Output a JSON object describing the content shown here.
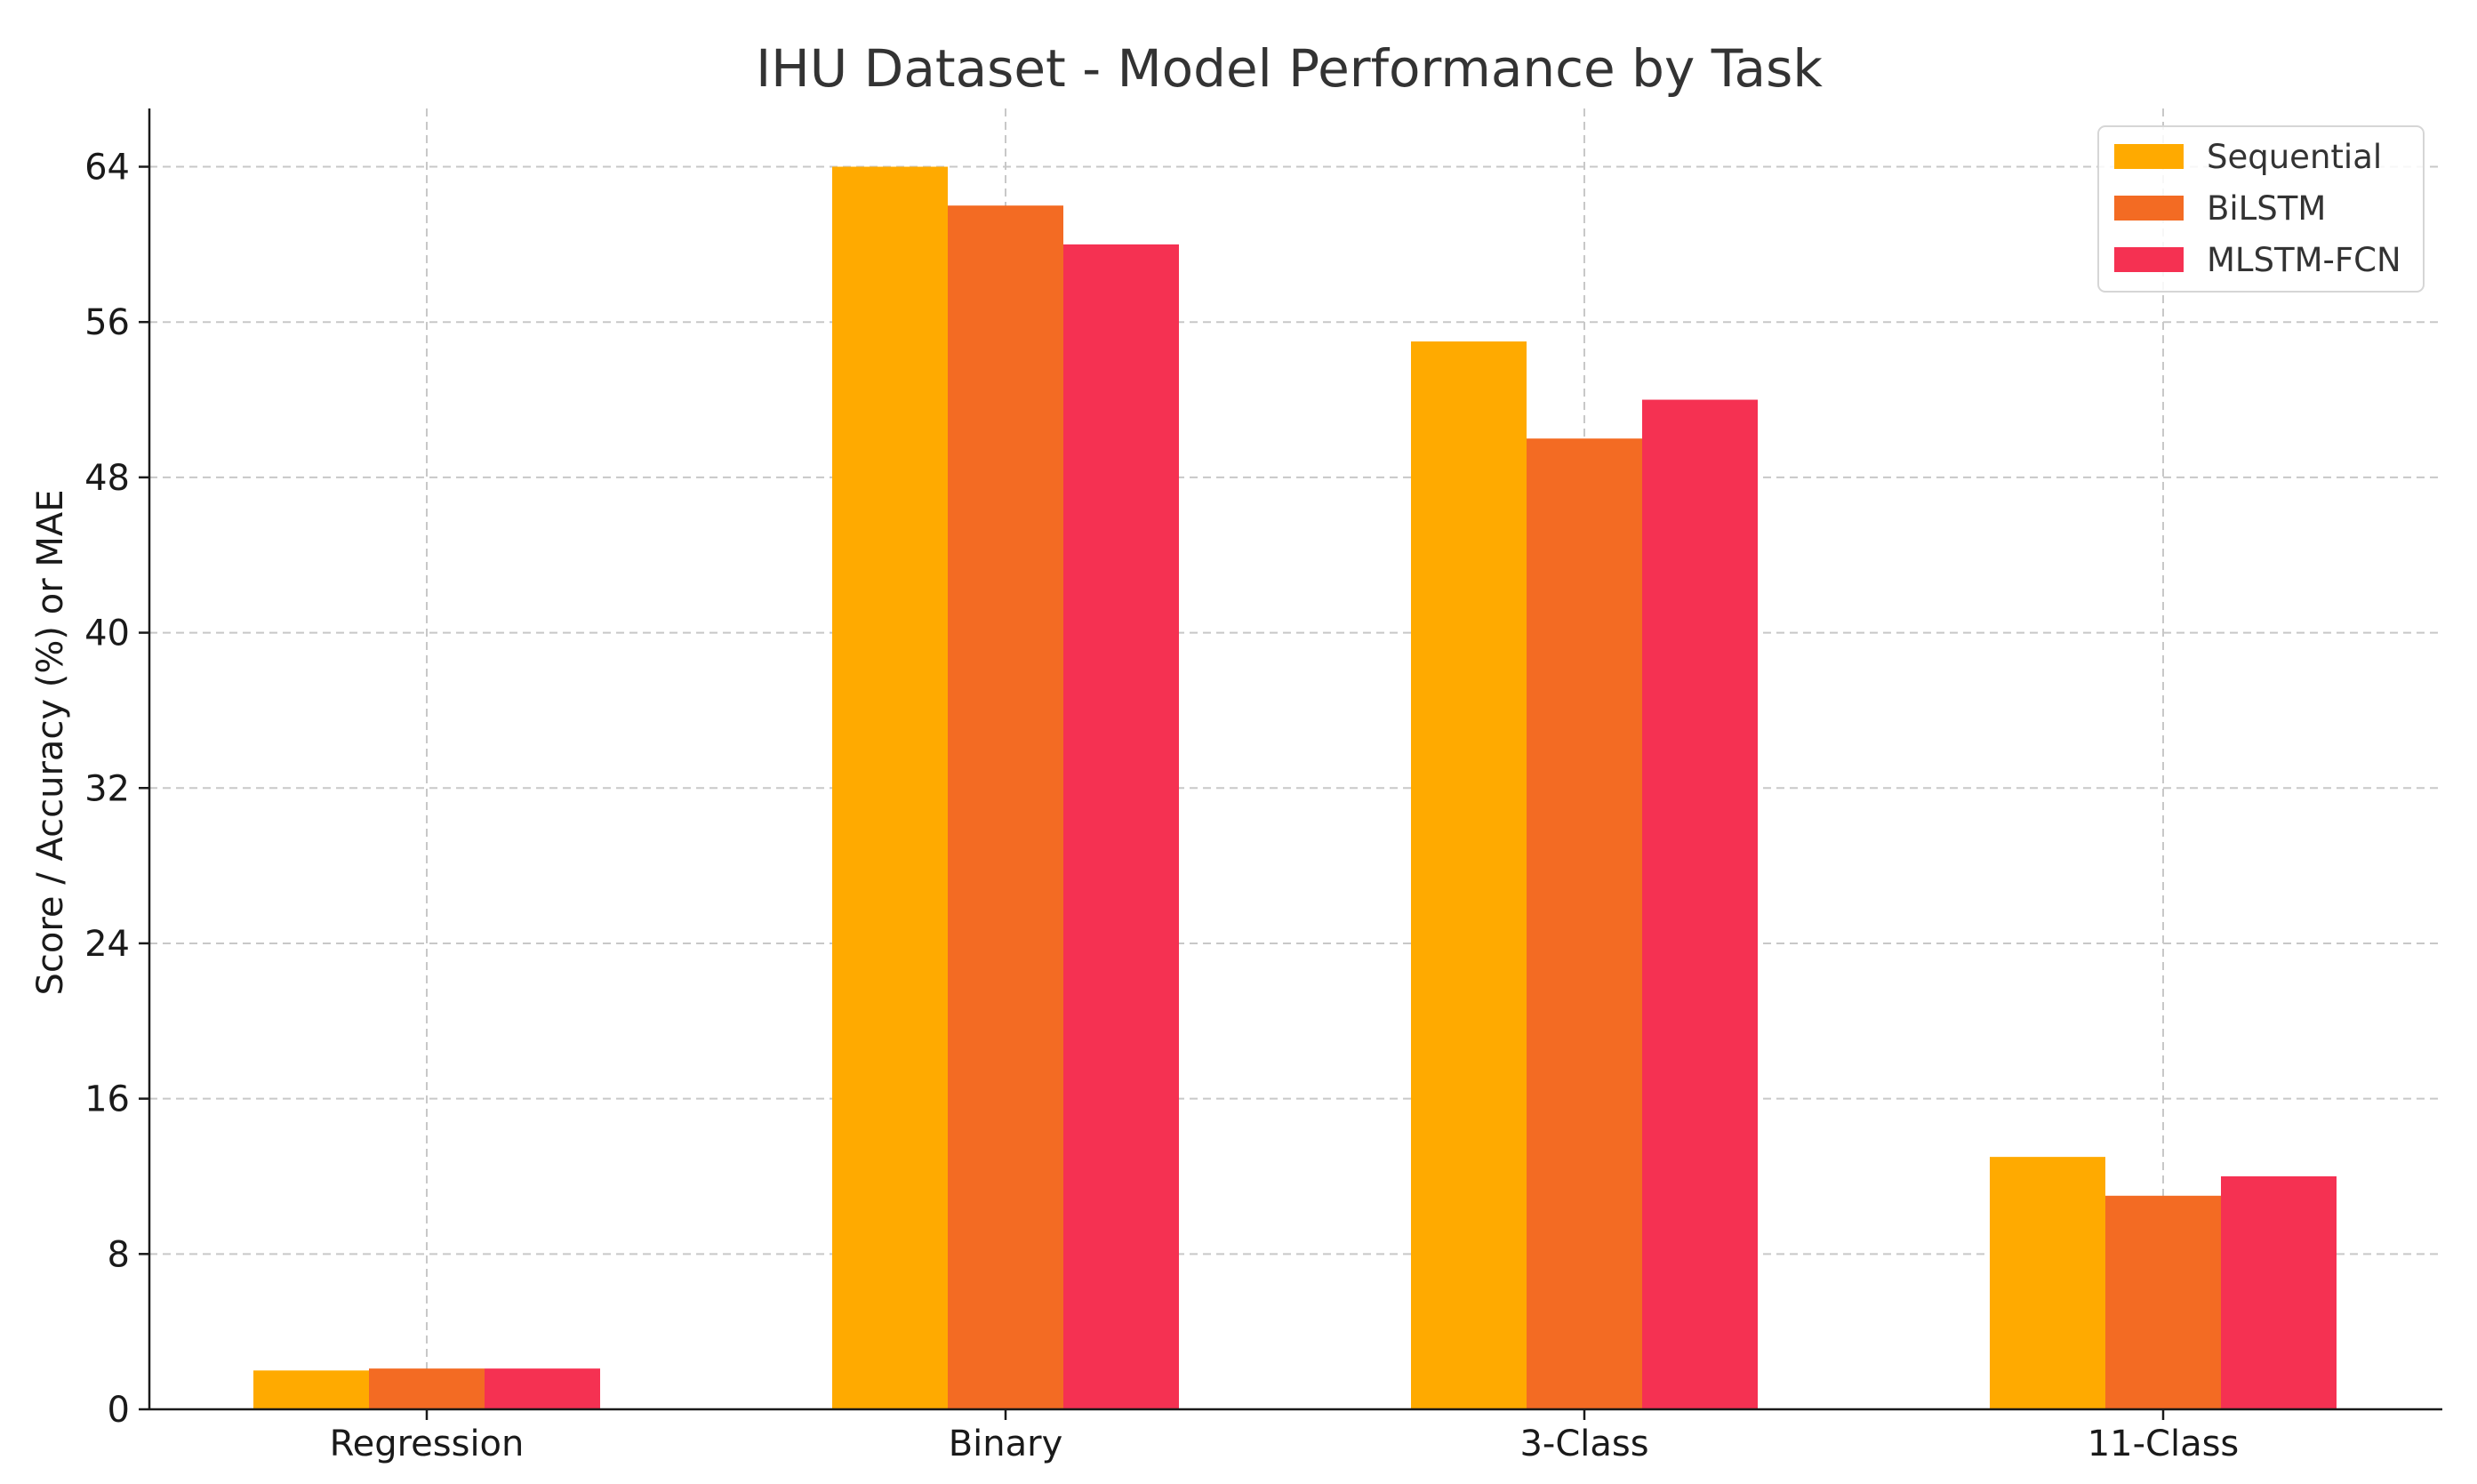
{
  "chart_data": {
    "type": "bar",
    "title": "IHU Dataset - Model Performance by Task",
    "xlabel": "",
    "ylabel": "Score / Accuracy (%) or MAE",
    "categories": [
      "Regression",
      "Binary",
      "3-Class",
      "11-Class"
    ],
    "ylim": [
      0,
      67
    ],
    "yticks": [
      0,
      8,
      16,
      24,
      32,
      40,
      48,
      56,
      64
    ],
    "grid": true,
    "legend_position": "top-right",
    "series": [
      {
        "name": "Sequential",
        "color": "#FFAA00",
        "values": [
          2.0,
          64.0,
          55.0,
          13.0
        ]
      },
      {
        "name": "BiLSTM",
        "color": "#F36B23",
        "values": [
          2.1,
          62.0,
          50.0,
          11.0
        ]
      },
      {
        "name": "MLSTM-FCN",
        "color": "#F53152",
        "values": [
          2.1,
          60.0,
          52.0,
          12.0
        ]
      }
    ]
  }
}
